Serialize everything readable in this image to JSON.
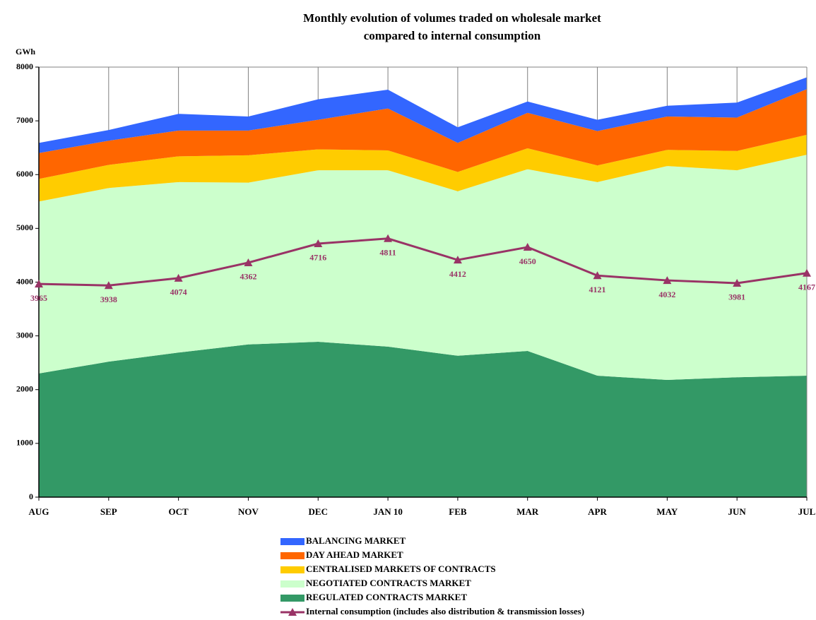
{
  "chart_data": {
    "type": "area",
    "stacked": true,
    "title": [
      "Monthly evolution of volumes traded on wholesale market",
      "compared to internal consumption"
    ],
    "y_label": "GWh",
    "categories": [
      "AUG",
      "SEP",
      "OCT",
      "NOV",
      "DEC",
      "JAN 10",
      "FEB",
      "MAR",
      "APR",
      "MAY",
      "JUN",
      "JUL"
    ],
    "series": [
      {
        "name": "REGULATED CONTRACTS MARKET",
        "color": "#339966",
        "values": [
          2300,
          2520,
          2690,
          2840,
          2890,
          2800,
          2630,
          2720,
          2260,
          2180,
          2230,
          2260
        ]
      },
      {
        "name": "NEGOTIATED CONTRACTS MARKET",
        "color": "#ccffcc",
        "values": [
          3200,
          3230,
          3170,
          3010,
          3190,
          3280,
          3060,
          3380,
          3600,
          3980,
          3850,
          4110
        ]
      },
      {
        "name": "CENTRALISED MARKETS OF CONTRACTS",
        "color": "#ffcc00",
        "values": [
          420,
          430,
          480,
          510,
          390,
          370,
          360,
          390,
          310,
          300,
          360,
          370
        ]
      },
      {
        "name": "DAY AHEAD MARKET",
        "color": "#ff6600",
        "values": [
          480,
          450,
          480,
          460,
          550,
          780,
          540,
          660,
          640,
          620,
          620,
          850
        ]
      },
      {
        "name": "BALANCING MARKET",
        "color": "#3366ff",
        "values": [
          190,
          200,
          310,
          260,
          380,
          350,
          290,
          210,
          210,
          200,
          280,
          220
        ]
      }
    ],
    "line": {
      "name": "Internal consumption (includes also distribution & transmission losses)",
      "color": "#993366",
      "values": [
        3965,
        3938,
        4074,
        4362,
        4716,
        4811,
        4412,
        4650,
        4121,
        4032,
        3981,
        4167
      ]
    },
    "ylim": [
      0,
      8000
    ],
    "yticks": [
      0,
      1000,
      2000,
      3000,
      4000,
      5000,
      6000,
      7000,
      8000
    ],
    "grid": "x"
  }
}
